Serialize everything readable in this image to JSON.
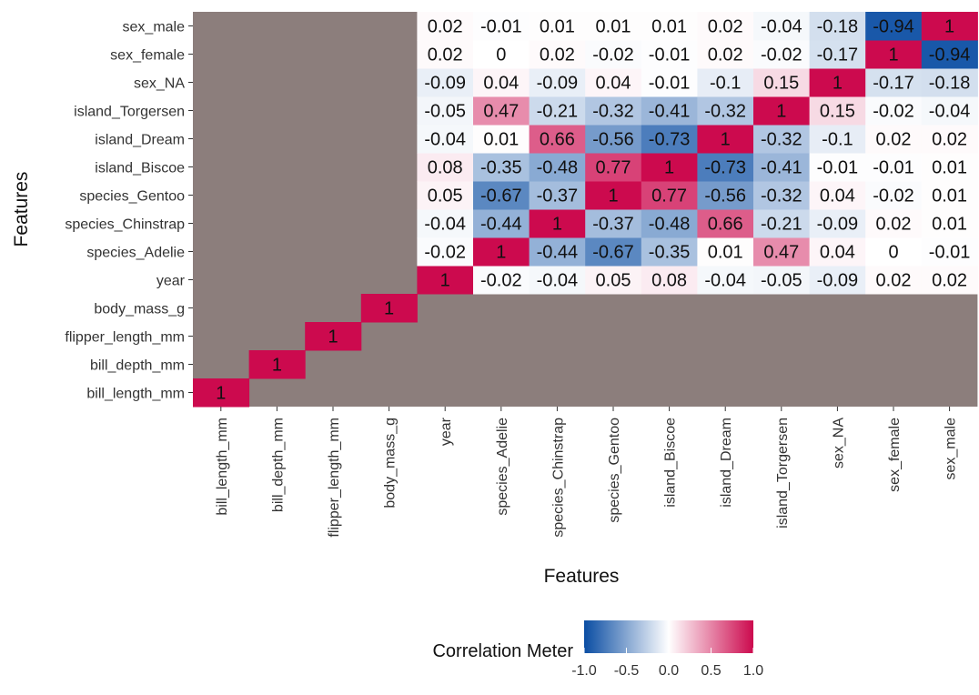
{
  "chart_data": {
    "type": "heatmap",
    "xlabel": "Features",
    "ylabel": "Features",
    "x_categories": [
      "bill_length_mm",
      "bill_depth_mm",
      "flipper_length_mm",
      "body_mass_g",
      "year",
      "species_Adelie",
      "species_Chinstrap",
      "species_Gentoo",
      "island_Biscoe",
      "island_Dream",
      "island_Torgersen",
      "sex_NA",
      "sex_female",
      "sex_male"
    ],
    "y_categories": [
      "bill_length_mm",
      "bill_depth_mm",
      "flipper_length_mm",
      "body_mass_g",
      "year",
      "species_Adelie",
      "species_Chinstrap",
      "species_Gentoo",
      "island_Biscoe",
      "island_Dream",
      "island_Torgersen",
      "sex_NA",
      "sex_female",
      "sex_male"
    ],
    "matrix": [
      [
        1,
        null,
        null,
        null,
        null,
        null,
        null,
        null,
        null,
        null,
        null,
        null,
        null,
        null
      ],
      [
        null,
        1,
        null,
        null,
        null,
        null,
        null,
        null,
        null,
        null,
        null,
        null,
        null,
        null
      ],
      [
        null,
        null,
        1,
        null,
        null,
        null,
        null,
        null,
        null,
        null,
        null,
        null,
        null,
        null
      ],
      [
        null,
        null,
        null,
        1,
        null,
        null,
        null,
        null,
        null,
        null,
        null,
        null,
        null,
        null
      ],
      [
        null,
        null,
        null,
        null,
        1,
        -0.02,
        -0.04,
        0.05,
        0.08,
        -0.04,
        -0.05,
        -0.09,
        0.02,
        0.02
      ],
      [
        null,
        null,
        null,
        null,
        -0.02,
        1,
        -0.44,
        -0.67,
        -0.35,
        0.01,
        0.47,
        0.04,
        0,
        -0.01
      ],
      [
        null,
        null,
        null,
        null,
        -0.04,
        -0.44,
        1,
        -0.37,
        -0.48,
        0.66,
        -0.21,
        -0.09,
        0.02,
        0.01
      ],
      [
        null,
        null,
        null,
        null,
        0.05,
        -0.67,
        -0.37,
        1,
        0.77,
        -0.56,
        -0.32,
        0.04,
        -0.02,
        0.01
      ],
      [
        null,
        null,
        null,
        null,
        0.08,
        -0.35,
        -0.48,
        0.77,
        1,
        -0.73,
        -0.41,
        -0.01,
        -0.01,
        0.01
      ],
      [
        null,
        null,
        null,
        null,
        -0.04,
        0.01,
        0.66,
        -0.56,
        -0.73,
        1,
        -0.32,
        -0.1,
        0.02,
        0.02
      ],
      [
        null,
        null,
        null,
        null,
        -0.05,
        0.47,
        -0.21,
        -0.32,
        -0.41,
        -0.32,
        1,
        0.15,
        -0.02,
        -0.04
      ],
      [
        null,
        null,
        null,
        null,
        -0.09,
        0.04,
        -0.09,
        0.04,
        -0.01,
        -0.1,
        0.15,
        1,
        -0.17,
        -0.18
      ],
      [
        null,
        null,
        null,
        null,
        0.02,
        0,
        0.02,
        -0.02,
        -0.01,
        0.02,
        -0.02,
        -0.17,
        1,
        -0.94
      ],
      [
        null,
        null,
        null,
        null,
        0.02,
        -0.01,
        0.01,
        0.01,
        0.01,
        0.02,
        -0.04,
        -0.18,
        -0.94,
        1
      ]
    ],
    "missing_color": "#8c7e7c",
    "color_scale": {
      "low": "#0a4da3",
      "mid": "#ffffff",
      "high": "#cc0a4e",
      "range": [
        -1,
        1
      ],
      "legend_title": "Correlation Meter",
      "legend_ticks": [
        "-1.0",
        "-0.5",
        "0.0",
        "0.5",
        "1.0"
      ],
      "legend_position": "bottom"
    }
  }
}
